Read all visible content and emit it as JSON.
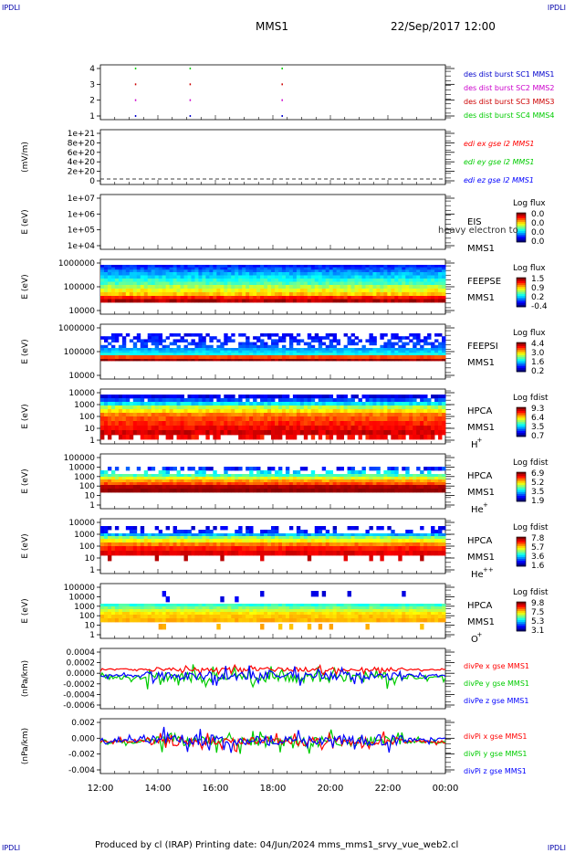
{
  "header": {
    "corner_tl": "IPDLI",
    "corner_tr": "IPDLI",
    "corner_bl": "IPDLI",
    "corner_br": "IPDLI",
    "spacecraft": "MMS1",
    "datetime": "22/Sep/2017 12:00"
  },
  "footer": {
    "text": "Produced by cl (IRAP)   Printing date: 04/Jun/2024   mms_mms1_srvy_vue_web2.cl"
  },
  "colors": {
    "sc1": "#0000cc",
    "sc2": "#cc00cc",
    "sc3": "#cc0000",
    "sc4": "#00cc00",
    "x": "#ff0000",
    "y": "#00cc00",
    "z": "#0000ff"
  },
  "chart_data": [
    {
      "type": "scatter",
      "name": "des dist burst availability",
      "ylabel": "",
      "yticks": [
        "4",
        "3",
        "2",
        "1"
      ],
      "ylim": [
        0.5,
        4.5
      ],
      "legend": [
        "des dist burst SC1 MMS1",
        "des dist burst SC2 MMS2",
        "des dist burst SC3 MMS3",
        "des dist burst SC4 MMS4"
      ],
      "series": [
        {
          "sc": 1,
          "times_h": [
            13.2,
            15.1,
            18.3
          ]
        },
        {
          "sc": 2,
          "times_h": [
            13.2,
            15.1,
            18.3
          ]
        },
        {
          "sc": 3,
          "times_h": [
            13.2,
            15.1,
            18.3
          ]
        },
        {
          "sc": 4,
          "times_h": [
            13.2,
            15.1,
            18.3
          ]
        }
      ]
    },
    {
      "type": "line",
      "ylabel": "(mV/m)",
      "yticks": [
        "1e+21",
        "8e+20",
        "6e+20",
        "4e+20",
        "2e+20",
        "0"
      ],
      "legend": [
        "edi ex gse l2 MMS1",
        "edi ey gse l2 MMS1",
        "edi ez gse l2 MMS1"
      ],
      "note_values": "all ~0"
    },
    {
      "type": "heatmap",
      "ylabel": "E (eV)",
      "yticks": [
        "1e+07",
        "1e+06",
        "1e+05",
        "1e+04"
      ],
      "instrument": [
        "EIS",
        "MMS1"
      ],
      "overlay_text": "heavy electron to",
      "colorbar_title": "Log flux",
      "colorbar_ticks": [
        "0.0",
        "0.0",
        "0.0",
        "0.0"
      ]
    },
    {
      "type": "heatmap",
      "ylabel": "E (eV)",
      "yticks": [
        "1000000",
        "100000",
        "10000"
      ],
      "instrument": [
        "FEEPSE",
        "MMS1"
      ],
      "colorbar_title": "Log flux",
      "colorbar_ticks": [
        "1.5",
        "0.9",
        "0.2",
        "-0.4"
      ]
    },
    {
      "type": "heatmap",
      "ylabel": "E (eV)",
      "yticks": [
        "1000000",
        "100000",
        "10000"
      ],
      "instrument": [
        "FEEPSI",
        "MMS1"
      ],
      "colorbar_title": "Log flux",
      "colorbar_ticks": [
        "4.4",
        "3.0",
        "1.6",
        "0.2"
      ]
    },
    {
      "type": "heatmap",
      "ylabel": "E (eV)",
      "yticks": [
        "10000",
        "1000",
        "100",
        "10",
        "1"
      ],
      "instrument": [
        "HPCA",
        "MMS1"
      ],
      "species": "H",
      "species_sup": "+",
      "colorbar_title": "Log fdist",
      "colorbar_ticks": [
        "9.3",
        "6.4",
        "3.5",
        "0.7"
      ]
    },
    {
      "type": "heatmap",
      "ylabel": "E (eV)",
      "yticks": [
        "100000",
        "10000",
        "1000",
        "100",
        "10",
        "1"
      ],
      "instrument": [
        "HPCA",
        "MMS1"
      ],
      "species": "He",
      "species_sup": "+",
      "colorbar_title": "Log fdist",
      "colorbar_ticks": [
        "6.9",
        "5.2",
        "3.5",
        "1.9"
      ]
    },
    {
      "type": "heatmap",
      "ylabel": "E (eV)",
      "yticks": [
        "10000",
        "1000",
        "100",
        "10",
        "1"
      ],
      "instrument": [
        "HPCA",
        "MMS1"
      ],
      "species": "He",
      "species_sup": "++",
      "colorbar_title": "Log fdist",
      "colorbar_ticks": [
        "7.8",
        "5.7",
        "3.6",
        "1.6"
      ]
    },
    {
      "type": "heatmap",
      "ylabel": "E (eV)",
      "yticks": [
        "100000",
        "10000",
        "1000",
        "100",
        "10",
        "1"
      ],
      "instrument": [
        "HPCA",
        "MMS1"
      ],
      "species": "O",
      "species_sup": "+",
      "colorbar_title": "Log fdist",
      "colorbar_ticks": [
        "9.8",
        "7.5",
        "5.3",
        "3.1"
      ]
    },
    {
      "type": "line",
      "ylabel": "(nPa/km)",
      "yticks": [
        "0.0004",
        "0.0002",
        "0.0000",
        "-0.0002",
        "-0.0004",
        "-0.0006"
      ],
      "ylim": [
        -0.0007,
        0.00045
      ],
      "legend": [
        "divPe x gse MMS1",
        "divPe y gse MMS1",
        "divPe z gse MMS1"
      ],
      "levels": {
        "x": 5e-05,
        "y": -0.0001,
        "z": -7e-05
      }
    },
    {
      "type": "line",
      "ylabel": "(nPa/km)",
      "yticks": [
        "0.002",
        "0.000",
        "-0.002",
        "-0.004"
      ],
      "ylim": [
        -0.0045,
        0.0032
      ],
      "legend": [
        "divPi x gse MMS1",
        "divPi y gse MMS1",
        "divPi z gse MMS1"
      ],
      "levels": {
        "x": 0.0,
        "y": 0.0,
        "z": 0.0002
      }
    }
  ],
  "xaxis": {
    "ticks": [
      "12:00",
      "14:00",
      "16:00",
      "18:00",
      "20:00",
      "22:00",
      "00:00"
    ],
    "range_h": [
      12,
      24
    ]
  }
}
